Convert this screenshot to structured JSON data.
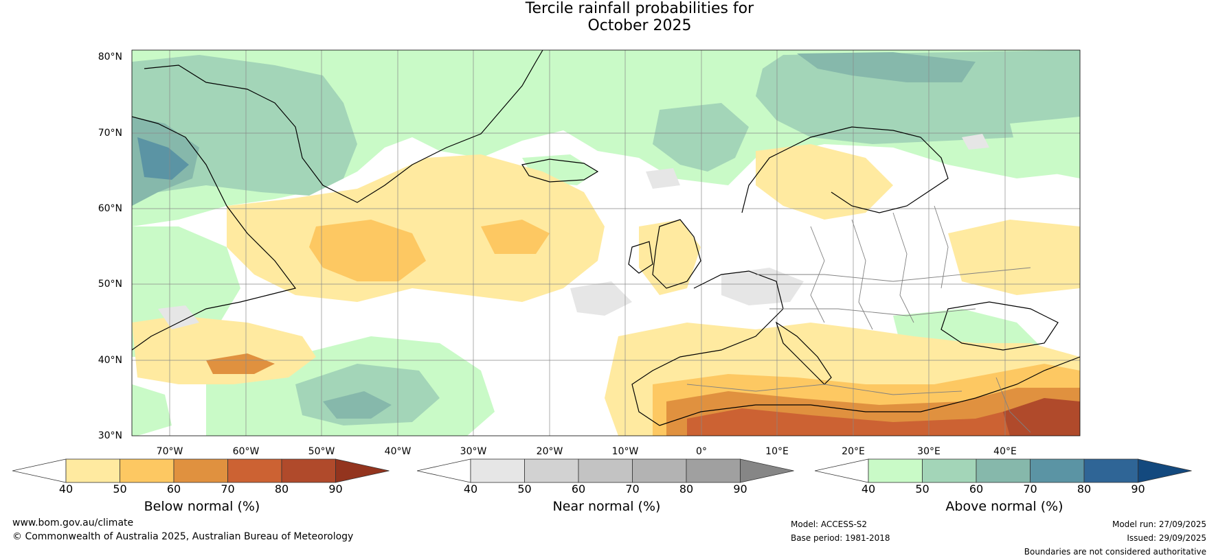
{
  "title": {
    "line1": "Tercile rainfall probabilities for",
    "line2": "October 2025"
  },
  "map": {
    "lat_labels": [
      "80°N",
      "70°N",
      "60°N",
      "50°N",
      "40°N",
      "30°N"
    ],
    "lon_labels": [
      "70°W",
      "60°W",
      "50°W",
      "40°W",
      "30°W",
      "20°W",
      "10°W",
      "0°",
      "10°E",
      "20°E",
      "30°E",
      "40°E"
    ]
  },
  "colorbars": [
    {
      "label": "Below normal (%)",
      "ticks": [
        "40",
        "50",
        "60",
        "70",
        "80",
        "90"
      ],
      "colors": [
        "#ffffff",
        "#ffeaa0",
        "#fdc862",
        "#e0913f",
        "#cc6233",
        "#b04a2b",
        "#93341e"
      ]
    },
    {
      "label": "Near normal (%)",
      "ticks": [
        "40",
        "50",
        "60",
        "70",
        "80",
        "90"
      ],
      "colors": [
        "#ffffff",
        "#e6e6e6",
        "#d2d2d2",
        "#c3c3c3",
        "#b3b3b3",
        "#a0a0a0",
        "#868686"
      ]
    },
    {
      "label": "Above normal (%)",
      "ticks": [
        "40",
        "50",
        "60",
        "70",
        "80",
        "90"
      ],
      "colors": [
        "#ffffff",
        "#c9fac7",
        "#a3d5b8",
        "#86b8ab",
        "#5b94a4",
        "#2f6596",
        "#13497e"
      ]
    }
  ],
  "footer": {
    "website": "www.bom.gov.au/climate",
    "copyright": "© Commonwealth of Australia 2025, Australian Bureau of Meteorology",
    "model": "Model: ACCESS-S2",
    "base_period": "Base period: 1981-2018",
    "model_run": "Model run: 27/09/2025",
    "issued": "Issued: 29/09/2025",
    "disclaimer": "Boundaries are not considered authoritative"
  }
}
